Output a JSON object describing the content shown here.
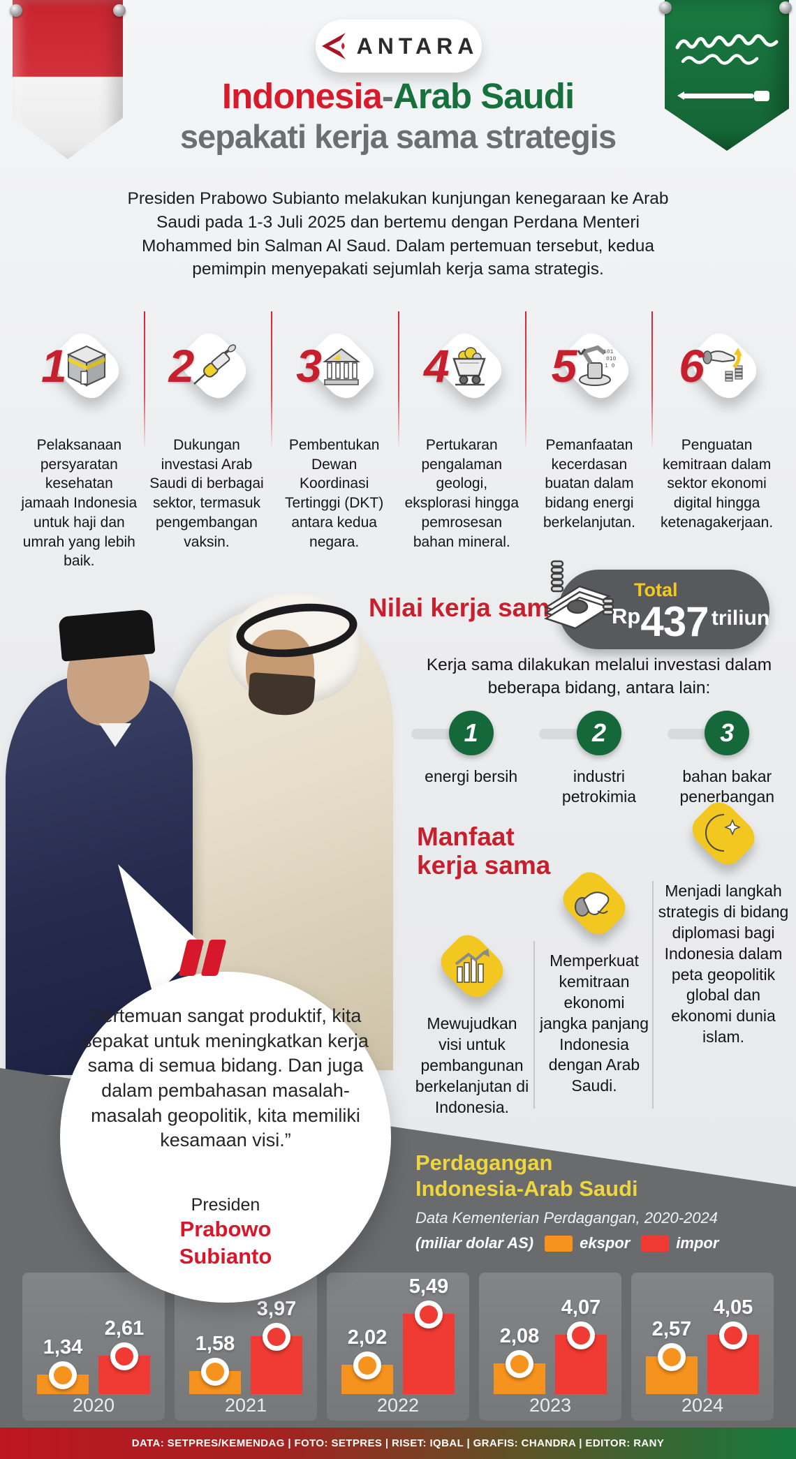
{
  "header": {
    "brand": "ANTARA",
    "title_red": "Indonesia",
    "title_sep": "-",
    "title_green": "Arab Saudi",
    "title_line2": "sepakati kerja sama strategis",
    "intro": "Presiden Prabowo Subianto melakukan kunjungan kenegaraan ke Arab Saudi pada 1-3 Juli 2025 dan bertemu dengan Perdana Menteri Mohammed bin Salman Al Saud. Dalam pertemuan tersebut, kedua pemimpin menyepakati sejumlah kerja sama strategis."
  },
  "agreements": [
    {
      "number": "1",
      "icon": "kaaba-icon",
      "text": "Pelaksanaan persyaratan kesehatan jamaah Indonesia untuk haji dan umrah yang lebih baik."
    },
    {
      "number": "2",
      "icon": "syringe-icon",
      "text": "Dukungan investasi Arab Saudi di berbagai sektor, termasuk pengembangan vaksin."
    },
    {
      "number": "3",
      "icon": "bank-icon",
      "text": "Pembentukan Dewan Koordinasi Tertinggi (DKT) antara kedua negara."
    },
    {
      "number": "4",
      "icon": "mine-cart-icon",
      "text": "Pertukaran pengalaman geologi, eksplorasi hingga pemrosesan bahan mineral."
    },
    {
      "number": "5",
      "icon": "robot-arm-icon",
      "text": "Pemanfaatan kecerdasan buatan dalam bidang energi berkelanjutan."
    },
    {
      "number": "6",
      "icon": "hand-coins-icon",
      "text": "Penguatan kemitraan dalam sektor ekonomi digital hingga ketenagakerjaan."
    }
  ],
  "value_section": {
    "label": "Nilai kerja sama",
    "total_label": "Total",
    "amount_prefix": "Rp",
    "amount": "437",
    "amount_suffix": "triliun"
  },
  "investment": {
    "intro": "Kerja sama dilakukan melalui investasi dalam beberapa bidang, antara lain:",
    "fields": [
      {
        "number": "1",
        "label": "energi bersih"
      },
      {
        "number": "2",
        "label": "industri petrokimia"
      },
      {
        "number": "3",
        "label": "bahan bakar penerbangan"
      }
    ]
  },
  "benefits": {
    "title_line1": "Manfaat",
    "title_line2": "kerja sama",
    "items": [
      {
        "icon": "chart-growth-icon",
        "text": "Mewujudkan visi untuk pembangunan berkelanjutan di Indonesia."
      },
      {
        "icon": "handshake-icon",
        "text": "Memperkuat kemitraan ekonomi jangka panjang Indonesia dengan Arab Saudi."
      },
      {
        "icon": "crescent-star-icon",
        "text": "Menjadi langkah strategis di bidang diplomasi bagi Indonesia dalam peta geopolitik global dan ekonomi dunia islam."
      }
    ]
  },
  "quote": {
    "text": "Pertemuan sangat produktif, kita sepakat untuk meningkatkan kerja sama di semua bidang. Dan juga dalam pembahasan masalah-masalah geopolitik, kita memiliki kesamaan visi.”",
    "role": "Presiden",
    "name_line1": "Prabowo",
    "name_line2": "Subianto"
  },
  "chart_data": {
    "type": "bar",
    "title_line1": "Perdagangan",
    "title_line2": "Indonesia-Arab Saudi",
    "subtitle": "Data Kementerian Perdagangan, 2020-2024",
    "unit": "(miliar dolar AS)",
    "legend": [
      {
        "name": "ekspor",
        "color": "#F6921E"
      },
      {
        "name": "impor",
        "color": "#EF3B33"
      }
    ],
    "categories": [
      "2020",
      "2021",
      "2022",
      "2023",
      "2024"
    ],
    "series": [
      {
        "name": "ekspor",
        "values": [
          1.34,
          1.58,
          2.02,
          2.08,
          2.57
        ]
      },
      {
        "name": "impor",
        "values": [
          2.61,
          3.97,
          5.49,
          4.07,
          4.05
        ]
      }
    ],
    "value_labels": [
      [
        "1,34",
        "2,61"
      ],
      [
        "1,58",
        "3,97"
      ],
      [
        "2,02",
        "5,49"
      ],
      [
        "2,08",
        "4,07"
      ],
      [
        "2,57",
        "4,05"
      ]
    ],
    "ylim": [
      0,
      6
    ],
    "grid": false,
    "legend_position": "top"
  },
  "footer": {
    "credits": "DATA: SETPRES/KEMENDAG   |   FOTO: SETPRES   |   RISET: IQBAL   |   GRAFIS: CHANDRA   |   EDITOR: RANY"
  },
  "colors": {
    "accent_red": "#D6182A",
    "accent_green": "#17713C",
    "title_gray": "#6D6E70",
    "badge_gray": "#58595C",
    "yellow": "#F6C91E",
    "dark_section": "#6A6B6D",
    "bar_ekspor": "#F6921E",
    "bar_impor": "#EF3B33",
    "footer_gradient_left": "#BE1622",
    "footer_gradient_right": "#147A3E"
  }
}
